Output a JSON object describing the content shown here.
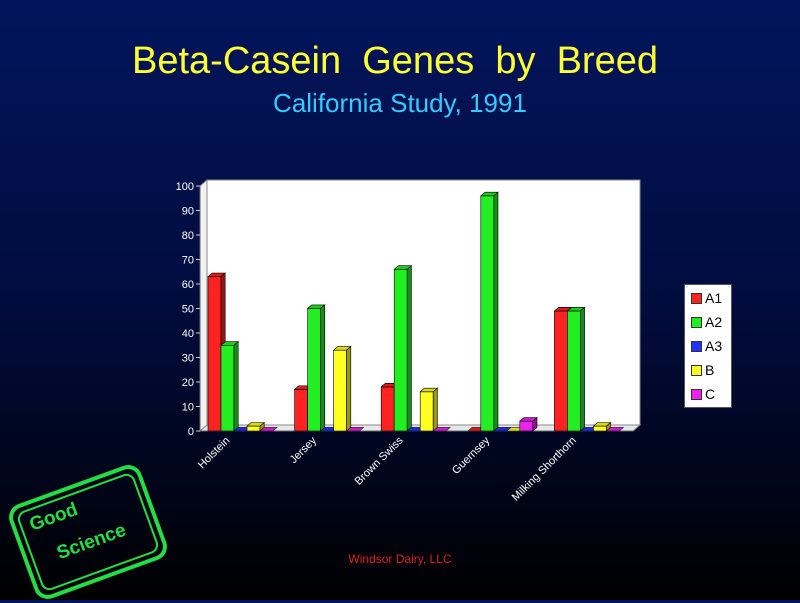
{
  "slide": {
    "title": "Beta-Casein  Genes  by  Breed",
    "subtitle": "California Study, 1991",
    "footer": "Windsor Dairy, LLC",
    "stamp_line1": "Good",
    "stamp_line2": "Science"
  },
  "colors": {
    "background": "#02155c",
    "title": "#ffff33",
    "subtitle": "#33ccff",
    "footer": "#dd2222",
    "stamp": "#22dd44"
  },
  "chart_data": {
    "type": "bar",
    "title": "",
    "xlabel": "",
    "ylabel": "",
    "categories": [
      "Holstein",
      "Jersey",
      "Brown Swiss",
      "Guernsey",
      "Milking Shorthorn"
    ],
    "ylim": [
      0,
      100
    ],
    "yticks": [
      0,
      10,
      20,
      30,
      40,
      50,
      60,
      70,
      80,
      90,
      100
    ],
    "grid": false,
    "legend_position": "right",
    "series": [
      {
        "name": "A1",
        "color": "#ff2222",
        "values": [
          63,
          17,
          18,
          0,
          49
        ]
      },
      {
        "name": "A2",
        "color": "#22ee22",
        "values": [
          35,
          50,
          66,
          96,
          49
        ]
      },
      {
        "name": "A3",
        "color": "#2233ff",
        "values": [
          0,
          0,
          0,
          0,
          0
        ]
      },
      {
        "name": "B",
        "color": "#ffff22",
        "values": [
          2,
          33,
          16,
          0,
          2
        ]
      },
      {
        "name": "C",
        "color": "#ee22ee",
        "values": [
          0,
          0,
          0,
          4,
          0
        ]
      }
    ]
  }
}
